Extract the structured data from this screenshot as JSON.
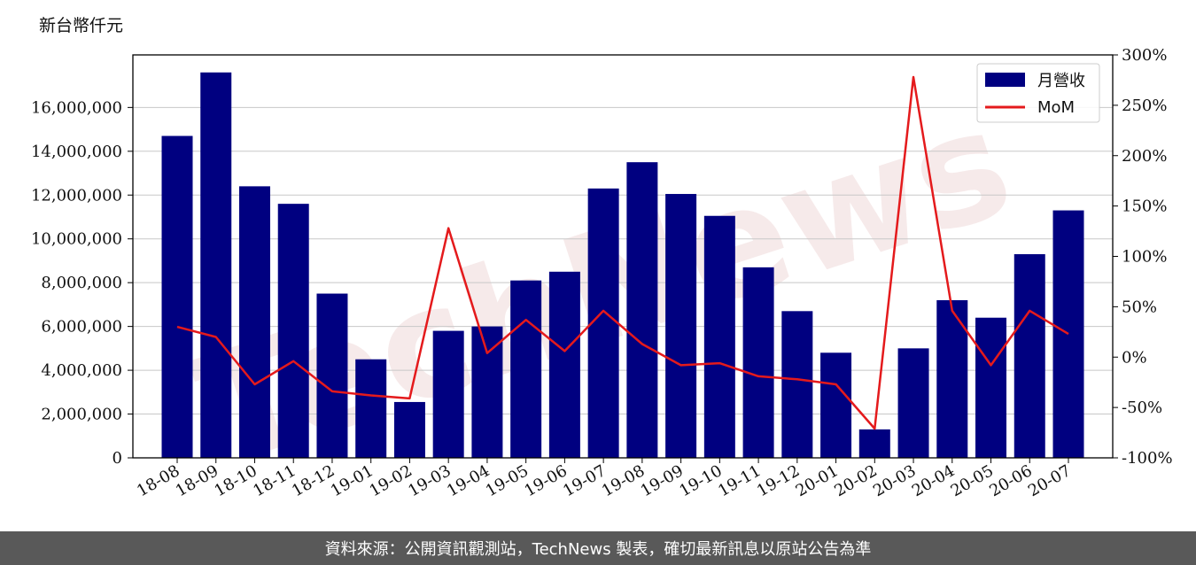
{
  "unit_label": "新台幣仟元",
  "footer_text": "資料來源：公開資訊觀測站，TechNews 製表，確切最新訊息以原站公告為準",
  "watermark": "TechNews",
  "colors": {
    "bar": "#000080",
    "line": "#e41a1c",
    "grid": "#c8c8c8",
    "footer_bg": "#595959"
  },
  "chart_data": {
    "type": "bar",
    "categories": [
      "18-08",
      "18-09",
      "18-10",
      "18-11",
      "18-12",
      "19-01",
      "19-02",
      "19-03",
      "19-04",
      "19-05",
      "19-06",
      "19-07",
      "19-08",
      "19-09",
      "19-10",
      "19-11",
      "19-12",
      "20-01",
      "20-02",
      "20-03",
      "20-04",
      "20-05",
      "20-06",
      "20-07"
    ],
    "series": [
      {
        "name": "月營收",
        "type": "bar",
        "axis": "left",
        "values": [
          14700000,
          17600000,
          12400000,
          11600000,
          7500000,
          4500000,
          2550000,
          5800000,
          6000000,
          8100000,
          8500000,
          12300000,
          13500000,
          12050000,
          11050000,
          8700000,
          6700000,
          4800000,
          1300000,
          5000000,
          7200000,
          6400000,
          9300000,
          11300000
        ]
      },
      {
        "name": "MoM",
        "type": "line",
        "axis": "right",
        "values": [
          30,
          20,
          -27,
          -4,
          -34,
          -38,
          -41,
          128,
          4,
          37,
          6,
          46,
          13,
          -8,
          -6,
          -19,
          -22,
          -27,
          -71,
          278,
          46,
          -8,
          46,
          23
        ]
      }
    ],
    "y_left": {
      "ylim": [
        0,
        18400000
      ],
      "ticks": [
        0,
        2000000,
        4000000,
        6000000,
        8000000,
        10000000,
        12000000,
        14000000,
        16000000
      ],
      "tick_labels": [
        "0",
        "2,000,000",
        "4,000,000",
        "6,000,000",
        "8,000,000",
        "10,000,000",
        "12,000,000",
        "14,000,000",
        "16,000,000"
      ]
    },
    "y_right": {
      "ylim": [
        -100,
        300
      ],
      "ticks": [
        -100,
        -50,
        0,
        50,
        100,
        150,
        200,
        250,
        300
      ],
      "tick_labels": [
        "-100%",
        "-50%",
        "0%",
        "50%",
        "100%",
        "150%",
        "200%",
        "250%",
        "300%"
      ]
    },
    "grid": true,
    "legend": "top-right"
  }
}
